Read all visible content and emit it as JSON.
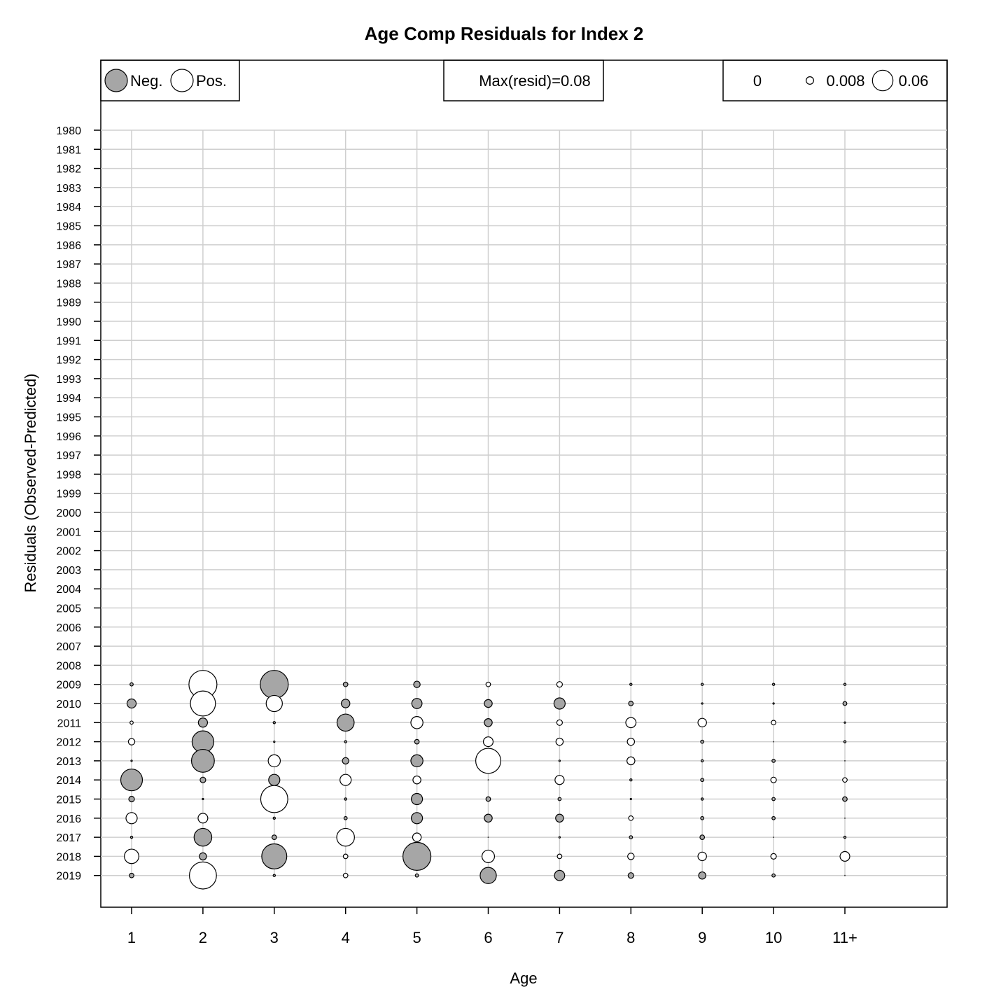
{
  "chart_data": {
    "type": "bubble",
    "title": "Age Comp Residuals for Index 2",
    "xlabel": "Age",
    "ylabel": "Residuals (Observed-Predicted)",
    "legend": {
      "neg_label": "Neg.",
      "pos_label": "Pos.",
      "neg_color": "#a6a6a6",
      "pos_color": "#ffffff",
      "max_label": "Max(resid)=0.08",
      "size_labels": [
        "0",
        "0.008",
        "0.06"
      ],
      "size_values": [
        0,
        0.008,
        0.06
      ]
    },
    "ages": [
      "1",
      "2",
      "3",
      "4",
      "5",
      "6",
      "7",
      "8",
      "9",
      "10",
      "11+"
    ],
    "years": [
      "1980",
      "1981",
      "1982",
      "1983",
      "1984",
      "1985",
      "1986",
      "1987",
      "1988",
      "1989",
      "1990",
      "1991",
      "1992",
      "1993",
      "1994",
      "1995",
      "1996",
      "1997",
      "1998",
      "1999",
      "2000",
      "2001",
      "2002",
      "2003",
      "2004",
      "2005",
      "2006",
      "2007",
      "2008",
      "2009",
      "2010",
      "2011",
      "2012",
      "2013",
      "2014",
      "2015",
      "2016",
      "2017",
      "2018",
      "2019"
    ],
    "residual_years": [
      "2009",
      "2010",
      "2011",
      "2012",
      "2013",
      "2014",
      "2015",
      "2016",
      "2017",
      "2018",
      "2019"
    ],
    "residuals": [
      [
        -0.001,
        0.075,
        -0.075,
        -0.002,
        -0.004,
        0.002,
        0.003,
        -0.0005,
        -0.0005,
        -0.0005,
        -0.0005
      ],
      [
        -0.008,
        0.06,
        0.025,
        -0.007,
        -0.01,
        -0.006,
        -0.012,
        -0.002,
        0.0002,
        0.0002,
        -0.0015
      ],
      [
        0.001,
        -0.008,
        -0.0005,
        -0.028,
        0.014,
        -0.006,
        0.003,
        0.01,
        0.007,
        0.002,
        0.0002
      ],
      [
        0.004,
        -0.045,
        0.0002,
        -0.0005,
        -0.002,
        0.009,
        0.005,
        0.005,
        -0.001,
        0,
        -0.0005
      ],
      [
        0.0002,
        -0.05,
        0.014,
        -0.004,
        -0.014,
        0.06,
        0.0002,
        0.006,
        -0.0005,
        -0.001,
        0
      ],
      [
        -0.045,
        -0.003,
        -0.012,
        0.012,
        0.006,
        0,
        0.008,
        -0.0005,
        -0.001,
        0.003,
        0.002
      ],
      [
        -0.003,
        0.0002,
        0.07,
        -0.0005,
        -0.012,
        -0.002,
        -0.001,
        0.0002,
        -0.0005,
        -0.001,
        -0.002
      ],
      [
        0.012,
        0.009,
        -0.0005,
        -0.001,
        -0.012,
        -0.006,
        -0.006,
        0.002,
        -0.001,
        -0.001,
        0
      ],
      [
        -0.0005,
        -0.03,
        -0.002,
        0.03,
        0.007,
        0,
        0.0002,
        -0.001,
        -0.002,
        0,
        -0.0005
      ],
      [
        0.02,
        -0.005,
        -0.06,
        0.002,
        -0.075,
        0.015,
        0.002,
        0.004,
        0.007,
        0.003,
        0.009
      ],
      [
        -0.002,
        0.07,
        -0.0005,
        0.002,
        -0.001,
        -0.025,
        -0.01,
        -0.003,
        -0.005,
        -0.001,
        0
      ]
    ]
  }
}
